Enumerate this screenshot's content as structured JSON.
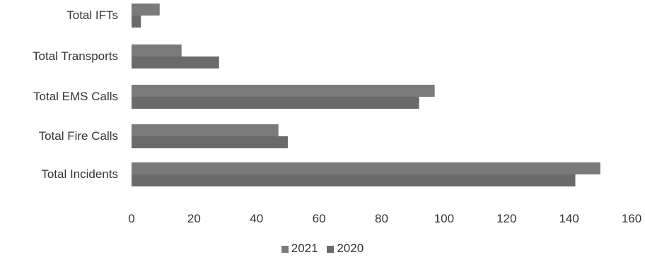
{
  "chart_data": {
    "type": "bar",
    "orientation": "horizontal",
    "categories": [
      "Total IFTs",
      "Total Transports",
      "Total EMS Calls",
      "Total Fire Calls",
      "Total Incidents"
    ],
    "series": [
      {
        "name": "2021",
        "values": [
          9,
          16,
          97,
          47,
          150
        ],
        "color": "#7a7a7a"
      },
      {
        "name": "2020",
        "values": [
          3,
          28,
          92,
          50,
          142
        ],
        "color": "#6a6a6a"
      }
    ],
    "xlim": [
      0,
      160
    ],
    "xticks": [
      "0",
      "20",
      "40",
      "60",
      "80",
      "100",
      "120",
      "140",
      "160"
    ],
    "title": "",
    "xlabel": "",
    "ylabel": "",
    "grid": false,
    "legend_position": "bottom"
  }
}
